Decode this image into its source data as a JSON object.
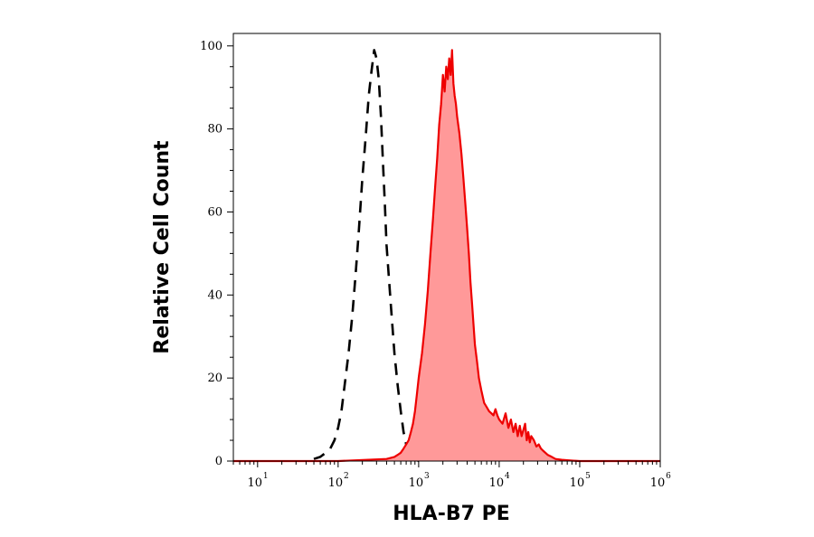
{
  "chart_data": {
    "type": "area",
    "xlabel": "HLA-B7 PE",
    "ylabel": "Relative Cell Count",
    "x_scale": "log",
    "xlim": [
      5,
      1000000
    ],
    "ylim": [
      0,
      103
    ],
    "x_ticks": [
      {
        "value": 10,
        "base": "10",
        "exp": "1"
      },
      {
        "value": 100,
        "base": "10",
        "exp": "2"
      },
      {
        "value": 1000,
        "base": "10",
        "exp": "3"
      },
      {
        "value": 10000,
        "base": "10",
        "exp": "4"
      },
      {
        "value": 100000,
        "base": "10",
        "exp": "5"
      },
      {
        "value": 1000000,
        "base": "10",
        "exp": "6"
      }
    ],
    "y_ticks": [
      {
        "value": 0,
        "label": "0"
      },
      {
        "value": 20,
        "label": "20"
      },
      {
        "value": 40,
        "label": "40"
      },
      {
        "value": 60,
        "label": "60"
      },
      {
        "value": 80,
        "label": "80"
      },
      {
        "value": 100,
        "label": "100"
      }
    ],
    "grid": false,
    "legend": "none",
    "series": [
      {
        "style": "dashed",
        "color": "#000000",
        "fill": "none",
        "x": [
          50,
          60,
          70,
          80,
          90,
          100,
          110,
          120,
          135,
          150,
          165,
          180,
          200,
          220,
          240,
          260,
          280,
          300,
          320,
          340,
          360,
          380,
          400,
          450,
          500,
          550,
          600,
          650,
          700,
          750,
          800,
          850,
          900,
          950,
          1000
        ],
        "y": [
          0.5,
          1,
          2,
          3,
          5,
          8,
          12,
          18,
          26,
          35,
          45,
          55,
          68,
          78,
          88,
          94,
          99,
          97,
          92,
          83,
          72,
          62,
          52,
          38,
          26,
          18,
          12,
          7,
          4,
          2,
          1.5,
          1,
          0.5,
          0.3,
          0
        ]
      },
      {
        "style": "solid",
        "color": "#ee0000",
        "fill": "#ff9999",
        "x": [
          5,
          100,
          400,
          500,
          550,
          600,
          650,
          700,
          750,
          800,
          850,
          900,
          950,
          1000,
          1100,
          1200,
          1300,
          1400,
          1500,
          1600,
          1700,
          1800,
          1900,
          2000,
          2100,
          2200,
          2300,
          2400,
          2500,
          2600,
          2700,
          2800,
          2900,
          3000,
          3200,
          3400,
          3600,
          3800,
          4000,
          4200,
          4400,
          4600,
          4800,
          5000,
          5300,
          5600,
          6000,
          6500,
          7000,
          7500,
          8000,
          8500,
          9000,
          9500,
          10000,
          11000,
          12000,
          13000,
          14000,
          15000,
          16000,
          17000,
          18000,
          19000,
          20000,
          21000,
          22000,
          23000,
          24000,
          25000,
          27000,
          29000,
          31000,
          33000,
          35000,
          40000,
          45000,
          50000,
          60000,
          70000,
          80000,
          100000,
          1000000
        ],
        "y": [
          0,
          0,
          0.5,
          1,
          1.5,
          2,
          3,
          4,
          5,
          7,
          9,
          12,
          16,
          20,
          26,
          33,
          41,
          50,
          58,
          66,
          73,
          81,
          86,
          93,
          89,
          95,
          92,
          97,
          93,
          99,
          91,
          88,
          86,
          83,
          79,
          74,
          68,
          62,
          56,
          50,
          43,
          38,
          33,
          28,
          24,
          20,
          17,
          14,
          13,
          12,
          11.5,
          11,
          12.5,
          11,
          10,
          9,
          11.5,
          8,
          10,
          7,
          9,
          6,
          8.5,
          6,
          7.5,
          9,
          5,
          7,
          4.5,
          6,
          5,
          3.5,
          4,
          3,
          2.5,
          1.5,
          1,
          0.5,
          0.3,
          0.2,
          0.1,
          0,
          0
        ]
      }
    ]
  }
}
